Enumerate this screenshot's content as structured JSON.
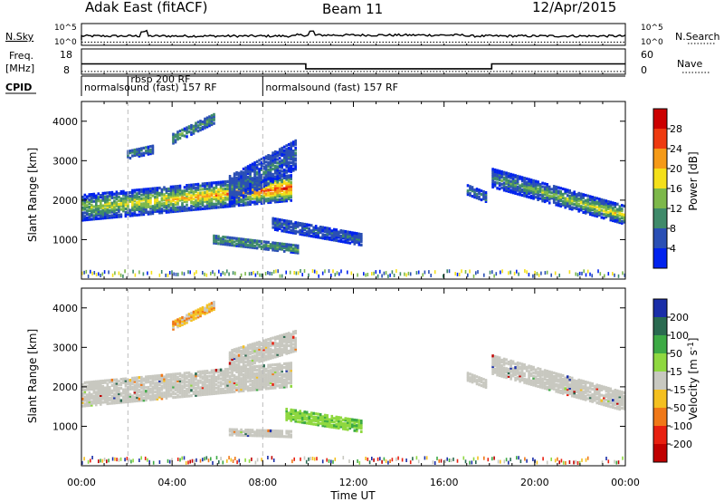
{
  "header": {
    "station": "Adak East (fitACF)",
    "beam": "Beam 11",
    "date": "12/Apr/2015"
  },
  "noise_panel": {
    "left_label": "N.Sky",
    "right_label": "N.Search",
    "ticks_left": [
      "10^5",
      "10^0"
    ],
    "ticks_right": [
      "10^5",
      "10^0"
    ]
  },
  "freq_panel": {
    "left_label_line1": "Freq.",
    "left_label_line2": "[MHz]",
    "ticks_left": [
      "18",
      "8"
    ],
    "right_label": "Nave",
    "ticks_right": [
      "60",
      "0"
    ],
    "freq_level_hours": [
      [
        0,
        14.2
      ],
      [
        9.9,
        14.2
      ],
      [
        9.9,
        11.0
      ],
      [
        18.1,
        11.0
      ],
      [
        18.1,
        14.2
      ],
      [
        24,
        14.2
      ]
    ],
    "nave_level_hours": [
      [
        0,
        4
      ],
      [
        24,
        4
      ]
    ]
  },
  "cpid": {
    "label": "CPID",
    "segments": [
      {
        "text": "normalsound (fast) 157 RF",
        "start_h": 0.0
      },
      {
        "text": "rbsp 200 RF",
        "start_h": 2.05
      },
      {
        "text": "normalsound (fast) 157 RF",
        "start_h": 8.0
      }
    ]
  },
  "chart_data": [
    {
      "type": "heatmap",
      "title": "",
      "xlabel": "",
      "ylabel": "Slant Range [km]",
      "x_range_hours": [
        0,
        24
      ],
      "ylim": [
        0,
        4500
      ],
      "yticks": [
        "1000",
        "2000",
        "3000",
        "4000"
      ],
      "colorbar": {
        "label": "Power [dB]",
        "ticks": [
          "4",
          "8",
          "12",
          "16",
          "20",
          "24",
          "28"
        ],
        "colors": [
          "#0022ee",
          "#2a4fb5",
          "#3f8a6a",
          "#7db84a",
          "#f4e01a",
          "#f59a18",
          "#ee3a10",
          "#cc0000"
        ]
      },
      "echo_regions": [
        {
          "t0": 0.0,
          "t1": 9.2,
          "r_mid_start": 1850,
          "r_mid_end": 2350,
          "half_width": 320,
          "peak_db": 26
        },
        {
          "t0": 2.0,
          "t1": 3.2,
          "r_mid_start": 3200,
          "r_mid_end": 3350,
          "half_width": 110,
          "peak_db": 9
        },
        {
          "t0": 4.0,
          "t1": 5.8,
          "r_mid_start": 3600,
          "r_mid_end": 4100,
          "half_width": 120,
          "peak_db": 11
        },
        {
          "t0": 6.5,
          "t1": 9.4,
          "r_mid_start": 2300,
          "r_mid_end": 3200,
          "half_width": 380,
          "peak_db": 7
        },
        {
          "t0": 5.8,
          "t1": 9.5,
          "r_mid_start": 1050,
          "r_mid_end": 800,
          "half_width": 100,
          "peak_db": 12
        },
        {
          "t0": 8.4,
          "t1": 12.3,
          "r_mid_start": 1450,
          "r_mid_end": 1050,
          "half_width": 150,
          "peak_db": 7
        },
        {
          "t0": 17.0,
          "t1": 17.9,
          "r_mid_start": 2300,
          "r_mid_end": 2100,
          "half_width": 120,
          "peak_db": 9
        },
        {
          "t0": 18.1,
          "t1": 24.0,
          "r_mid_start": 2600,
          "r_mid_end": 1650,
          "half_width": 230,
          "peak_db": 19
        }
      ]
    },
    {
      "type": "heatmap",
      "title": "",
      "xlabel": "Time UT",
      "ylabel": "Slant Range [km]",
      "x_range_hours": [
        0,
        24
      ],
      "xticks": [
        "00:00",
        "04:00",
        "08:00",
        "12:00",
        "16:00",
        "20:00",
        "00:00"
      ],
      "ylim": [
        0,
        4500
      ],
      "yticks": [
        "1000",
        "2000",
        "3000",
        "4000"
      ],
      "colorbar": {
        "label": "Velocity [m s^-1]",
        "ticks": [
          "200",
          "100",
          "50",
          "15",
          "-15",
          "-50",
          "-100",
          "-200"
        ],
        "colors": [
          "#1a2ea8",
          "#2a6a50",
          "#3daa45",
          "#8fd840",
          "#c8c8c0",
          "#f4c020",
          "#f07818",
          "#e82010",
          "#c00000"
        ]
      },
      "ground_scatter_color": "#c8c8c0",
      "velocity_regions": [
        {
          "t0": 0.0,
          "t1": 9.2,
          "r_mid_start": 1850,
          "r_mid_end": 2350,
          "half_width": 300,
          "class": "ground"
        },
        {
          "t0": 4.0,
          "t1": 5.8,
          "r_mid_start": 3600,
          "r_mid_end": 4100,
          "half_width": 100,
          "class": "mixed"
        },
        {
          "t0": 6.5,
          "t1": 9.4,
          "r_mid_start": 2700,
          "r_mid_end": 3200,
          "half_width": 250,
          "class": "ground"
        },
        {
          "t0": 9.0,
          "t1": 12.3,
          "r_mid_start": 1350,
          "r_mid_end": 1050,
          "half_width": 150,
          "class": "positive"
        },
        {
          "t0": 6.5,
          "t1": 9.2,
          "r_mid_start": 900,
          "r_mid_end": 850,
          "half_width": 80,
          "class": "ground"
        },
        {
          "t0": 17.0,
          "t1": 17.9,
          "r_mid_start": 2300,
          "r_mid_end": 2100,
          "half_width": 100,
          "class": "ground"
        },
        {
          "t0": 18.1,
          "t1": 24.0,
          "r_mid_start": 2600,
          "r_mid_end": 1650,
          "half_width": 230,
          "class": "ground"
        }
      ]
    }
  ]
}
